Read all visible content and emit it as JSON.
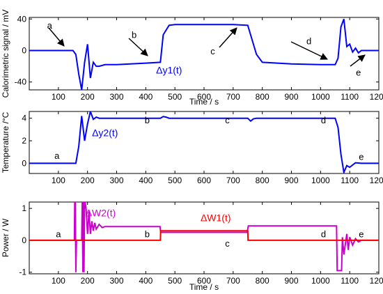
{
  "chart_data": [
    {
      "type": "line",
      "ylabel": "Calorimetric signal / mV",
      "xlabel": "Time / s",
      "xlim": [
        0,
        1200
      ],
      "ylim": [
        -50,
        42
      ],
      "xticks": [
        100,
        200,
        300,
        400,
        500,
        600,
        700,
        800,
        900,
        1000,
        1100,
        1200
      ],
      "yticks": [
        -40,
        0,
        40
      ],
      "grid": false,
      "series": [
        {
          "color": "#0000ff",
          "x": [
            0,
            150,
            160,
            170,
            180,
            190,
            200,
            210,
            220,
            230,
            240,
            260,
            300,
            400,
            450,
            460,
            480,
            500,
            600,
            700,
            750,
            780,
            800,
            900,
            1000,
            1050,
            1060,
            1070,
            1080,
            1090,
            1100,
            1110,
            1120,
            1130,
            1140,
            1200
          ],
          "y": [
            0,
            0,
            -5,
            -30,
            -50,
            -15,
            8,
            -35,
            -15,
            -20,
            -20,
            -18,
            -18,
            -16,
            -15,
            20,
            32,
            33,
            33,
            33,
            32,
            -5,
            -15,
            -17,
            -18,
            -18,
            -10,
            30,
            40,
            5,
            8,
            -2,
            3,
            -3,
            0,
            0
          ]
        }
      ],
      "annotations": [
        {
          "text": "a",
          "x": 70,
          "y": 28
        },
        {
          "text": "b",
          "x": 360,
          "y": 16
        },
        {
          "text": "c",
          "x": 630,
          "y": -5
        },
        {
          "text": "d",
          "x": 960,
          "y": 8
        },
        {
          "text": "e",
          "x": 1130,
          "y": -32
        },
        {
          "text": "Δy1(t)",
          "x": 480,
          "y": -29,
          "color": "#0000ff"
        }
      ]
    },
    {
      "type": "line",
      "ylabel": "Temperature /°C",
      "xlabel": "",
      "xlim": [
        0,
        1200
      ],
      "ylim": [
        -0.9,
        4.6
      ],
      "xticks": [
        100,
        200,
        300,
        400,
        500,
        600,
        700,
        800,
        900,
        1000,
        1100,
        1200
      ],
      "yticks": [
        0,
        2,
        4
      ],
      "grid": false,
      "series": [
        {
          "color": "#0000ff",
          "x": [
            0,
            160,
            170,
            180,
            190,
            200,
            210,
            220,
            230,
            240,
            260,
            300,
            400,
            450,
            460,
            470,
            480,
            600,
            750,
            760,
            770,
            780,
            800,
            900,
            1000,
            1050,
            1060,
            1070,
            1080,
            1090,
            1100,
            1120,
            1140,
            1200
          ],
          "y": [
            0,
            0,
            1.5,
            4.2,
            2.0,
            3.5,
            4.6,
            3.9,
            4.1,
            4.0,
            4.0,
            4.0,
            4.0,
            4.0,
            4.15,
            4.1,
            4.0,
            4.0,
            4.0,
            3.75,
            3.95,
            4.0,
            4.0,
            4.0,
            4.0,
            4.0,
            3.2,
            0.8,
            -0.8,
            -0.2,
            -0.35,
            0.05,
            0,
            0
          ]
        }
      ],
      "annotations": [
        {
          "text": "a",
          "x": 95,
          "y": 0.4
        },
        {
          "text": "b",
          "x": 405,
          "y": 3.55
        },
        {
          "text": "c",
          "x": 680,
          "y": 3.55
        },
        {
          "text": "d",
          "x": 1010,
          "y": 3.55
        },
        {
          "text": "e",
          "x": 1140,
          "y": 0.3
        },
        {
          "text": "Δy2(t)",
          "x": 260,
          "y": 2.4,
          "color": "#0000ff"
        }
      ]
    },
    {
      "type": "line",
      "ylabel": "Power / W",
      "xlabel": "Time / s",
      "xlim": [
        0,
        1200
      ],
      "ylim": [
        -1.05,
        1.2
      ],
      "xticks": [
        100,
        200,
        300,
        400,
        500,
        600,
        700,
        800,
        900,
        1000,
        1100,
        1200
      ],
      "yticks": [
        -1,
        0,
        1
      ],
      "grid": false,
      "series": [
        {
          "name": "ΔW2(t)",
          "color": "#cc00cc",
          "x": [
            0,
            155,
            156,
            158,
            160,
            162,
            170,
            180,
            182,
            184,
            186,
            188,
            190,
            192,
            195,
            200,
            205,
            210,
            215,
            220,
            225,
            230,
            240,
            250,
            260,
            300,
            350,
            400,
            449,
            451,
            460,
            500,
            600,
            700,
            748,
            752,
            760,
            800,
            900,
            1000,
            1050,
            1055,
            1057,
            1070,
            1072,
            1075,
            1080,
            1090,
            1095,
            1100,
            1110,
            1120,
            1130,
            1140,
            1150,
            1200
          ],
          "y": [
            0,
            0,
            1.2,
            1.2,
            -1.0,
            0,
            0,
            0,
            1.2,
            -1.0,
            1.2,
            -1.0,
            1.2,
            1.2,
            1.0,
            0.2,
            0.9,
            0.2,
            0.6,
            0.3,
            0.55,
            0.35,
            0.5,
            0.4,
            0.43,
            0.43,
            0.43,
            0.43,
            0.43,
            0.25,
            0.25,
            0.25,
            0.25,
            0.25,
            0.25,
            0.45,
            0.45,
            0.45,
            0.45,
            0.45,
            0.45,
            0.45,
            -0.95,
            -0.95,
            -0.95,
            0.1,
            -0.45,
            0.2,
            -0.3,
            0.1,
            -0.15,
            0.05,
            -0.05,
            0,
            0,
            0
          ]
        },
        {
          "name": "ΔW1(t)",
          "color": "#ff0000",
          "x": [
            0,
            450,
            451,
            750,
            751,
            1200
          ],
          "y": [
            0,
            0,
            0.3,
            0.3,
            0,
            0
          ]
        }
      ],
      "annotations": [
        {
          "text": "a",
          "x": 100,
          "y": 0.1
        },
        {
          "text": "b",
          "x": 405,
          "y": 0.1
        },
        {
          "text": "c",
          "x": 680,
          "y": -0.2
        },
        {
          "text": "d",
          "x": 1010,
          "y": 0.1
        },
        {
          "text": "e",
          "x": 1140,
          "y": 0.1
        },
        {
          "text": "ΔW2(t)",
          "x": 245,
          "y": 0.75,
          "color": "#cc00cc"
        },
        {
          "text": "ΔW1(t)",
          "x": 640,
          "y": 0.6,
          "color": "#ff0000"
        }
      ]
    }
  ]
}
